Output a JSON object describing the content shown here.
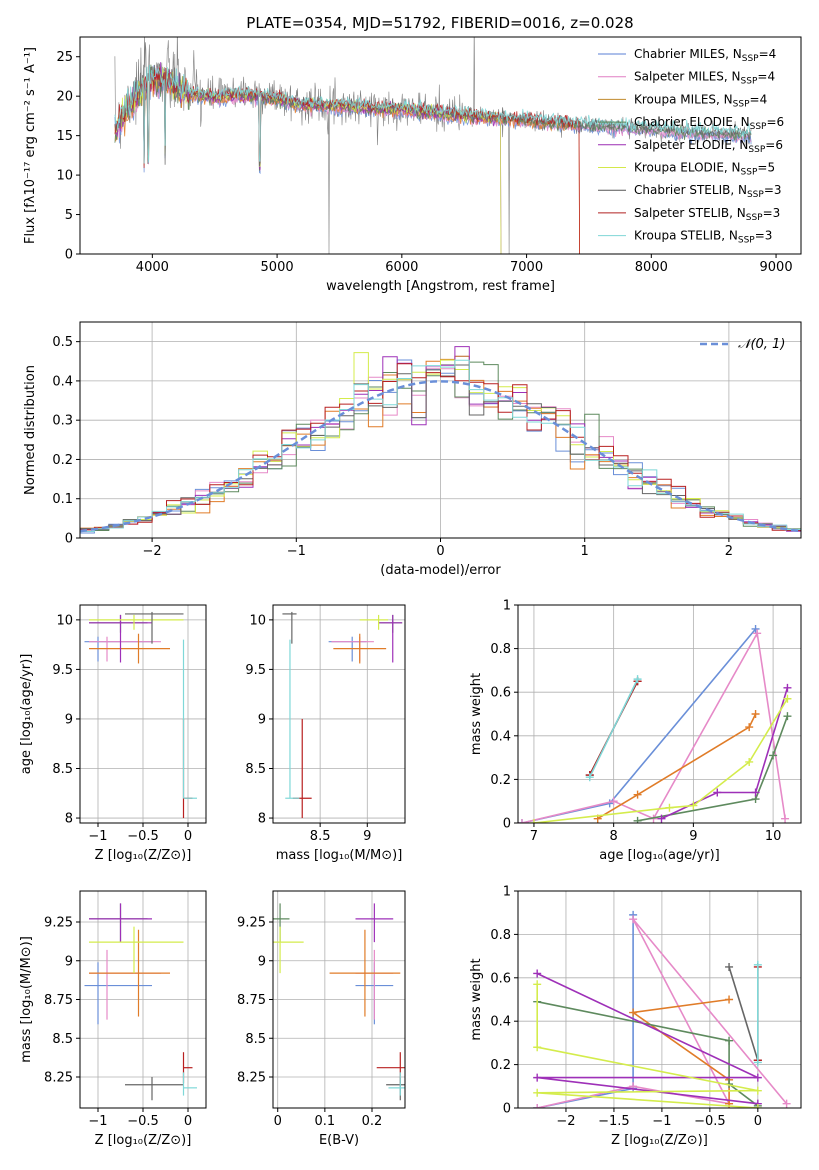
{
  "figure": {
    "title": "PLATE=0354, MJD=51792, FIBERID=0016, z=0.028"
  },
  "chart_data": [
    {
      "id": "spectrum",
      "type": "line",
      "xlabel": "wavelength [Angstrom, rest frame]",
      "ylabel": "Flux [fλ10⁻¹⁷ erg cm⁻² s⁻¹ A⁻¹]",
      "xlim": [
        3420,
        9200
      ],
      "ylim": [
        0,
        27.5
      ],
      "xticks": [
        4000,
        5000,
        6000,
        7000,
        8000,
        9000
      ],
      "yticks": [
        0,
        5,
        10,
        15,
        20,
        25
      ],
      "grid": false,
      "legend_position": "top-right",
      "legend": [
        {
          "label": "Chabrier MILES, N",
          "sub": "SSP",
          "tail": "=4",
          "color": "#5a7fd6"
        },
        {
          "label": "Salpeter MILES, N",
          "sub": "SSP",
          "tail": "=4",
          "color": "#e07fc4"
        },
        {
          "label": "Kroupa MILES, N",
          "sub": "SSP",
          "tail": "=4",
          "color": "#c08a2c"
        },
        {
          "label": "Chabrier ELODIE, N",
          "sub": "SSP",
          "tail": "=6",
          "color": "#5c8c5c"
        },
        {
          "label": "Salpeter ELODIE, N",
          "sub": "SSP",
          "tail": "=6",
          "color": "#9b2db4"
        },
        {
          "label": "Kroupa ELODIE, N",
          "sub": "SSP",
          "tail": "=5",
          "color": "#d4e84a"
        },
        {
          "label": "Chabrier STELIB, N",
          "sub": "SSP",
          "tail": "=3",
          "color": "#555555"
        },
        {
          "label": "Salpeter STELIB, N",
          "sub": "SSP",
          "tail": "=3",
          "color": "#b02020"
        },
        {
          "label": "Kroupa STELIB, N",
          "sub": "SSP",
          "tail": "=3",
          "color": "#7fd6d6"
        }
      ],
      "data_continuum": [
        [
          3700,
          16.5
        ],
        [
          3800,
          19.5
        ],
        [
          3900,
          21.0
        ],
        [
          4000,
          23.0
        ],
        [
          4100,
          22.5
        ],
        [
          4200,
          21.5
        ],
        [
          4300,
          20.5
        ],
        [
          4500,
          20.0
        ],
        [
          4700,
          20.5
        ],
        [
          5000,
          20.0
        ],
        [
          5200,
          19.0
        ],
        [
          5500,
          19.0
        ],
        [
          5800,
          18.5
        ],
        [
          6000,
          18.5
        ],
        [
          6300,
          18.0
        ],
        [
          6600,
          17.5
        ],
        [
          7000,
          17.0
        ],
        [
          7400,
          16.5
        ],
        [
          7800,
          16.0
        ],
        [
          8200,
          15.5
        ],
        [
          8600,
          15.2
        ],
        [
          8800,
          15.0
        ]
      ],
      "model_continuum": [
        [
          3700,
          15.5
        ],
        [
          3800,
          18.5
        ],
        [
          3900,
          20.5
        ],
        [
          4000,
          22.0
        ],
        [
          4100,
          22.0
        ],
        [
          4200,
          21.0
        ],
        [
          4300,
          20.3
        ],
        [
          4500,
          19.8
        ],
        [
          4700,
          20.2
        ],
        [
          5000,
          19.7
        ],
        [
          5200,
          18.9
        ],
        [
          5500,
          18.8
        ],
        [
          5800,
          18.4
        ],
        [
          6000,
          18.3
        ],
        [
          6300,
          17.8
        ],
        [
          6600,
          17.4
        ],
        [
          7000,
          16.9
        ],
        [
          7400,
          16.4
        ]
      ]
    },
    {
      "id": "residuals",
      "type": "histogram",
      "xlabel": "(data-model)/error",
      "ylabel": "Normed distribution",
      "xlim": [
        -2.5,
        2.5
      ],
      "ylim": [
        0,
        0.55
      ],
      "xticks": [
        -2,
        -1,
        0,
        1,
        2
      ],
      "yticks": [
        0.0,
        0.1,
        0.2,
        0.3,
        0.4,
        0.5
      ],
      "grid": true,
      "bin_width": 0.1,
      "legend_position": "top-right",
      "normal_label": "𝒩(0, 1)",
      "normal_color": "#6a8fd8"
    },
    {
      "id": "age-vs-Z",
      "type": "errorbar",
      "xlabel": "Z [log₁₀(Z/Z⊙)]",
      "ylabel": "age  [log₁₀(age/yr)]",
      "xlim": [
        -1.2,
        0.2
      ],
      "ylim": [
        7.95,
        10.15
      ],
      "xticks": [
        -1.0,
        -0.5,
        0.0
      ],
      "yticks": [
        8.0,
        8.5,
        9.0,
        9.5,
        10.0
      ],
      "grid": true
    },
    {
      "id": "age-vs-mass",
      "type": "errorbar",
      "xlabel": "mass [log₁₀(M/M⊙)]",
      "xlim": [
        8.0,
        9.4
      ],
      "ylim": [
        7.95,
        10.15
      ],
      "xticks": [
        8.5,
        9.0
      ],
      "yticks": [
        8.0,
        8.5,
        9.0,
        9.5,
        10.0
      ],
      "grid": true
    },
    {
      "id": "massweight-vs-age",
      "type": "line",
      "xlabel": "age  [log₁₀(age/yr)]",
      "ylabel": "mass weight",
      "xlim": [
        6.8,
        10.35
      ],
      "ylim": [
        0,
        1
      ],
      "xticks": [
        7,
        8,
        9,
        10
      ],
      "yticks": [
        0.0,
        0.2,
        0.4,
        0.6,
        0.8,
        1.0
      ],
      "grid": true
    },
    {
      "id": "mass-vs-Z",
      "type": "errorbar",
      "xlabel": "Z [log₁₀(Z/Z⊙)]",
      "ylabel": "mass [log₁₀(M/M⊙)]",
      "xlim": [
        -1.2,
        0.2
      ],
      "ylim": [
        8.05,
        9.45
      ],
      "xticks": [
        -1.0,
        -0.5,
        0.0
      ],
      "yticks": [
        8.25,
        8.5,
        8.75,
        9.0,
        9.25
      ],
      "grid": true
    },
    {
      "id": "mass-vs-ebv",
      "type": "errorbar",
      "xlabel": "E(B-V)",
      "xlim": [
        -0.01,
        0.27
      ],
      "ylim": [
        8.05,
        9.45
      ],
      "xticks": [
        0.0,
        0.1,
        0.2
      ],
      "yticks": [
        8.25,
        8.5,
        8.75,
        9.0,
        9.25
      ],
      "grid": true
    },
    {
      "id": "massweight-vs-Z",
      "type": "line",
      "xlabel": "Z [log₁₀(Z/Z⊙)]",
      "ylabel": "mass weight",
      "xlim": [
        -2.5,
        0.45
      ],
      "ylim": [
        0,
        1
      ],
      "xticks": [
        -2.0,
        -1.5,
        -1.0,
        -0.5,
        0.0
      ],
      "yticks": [
        0.0,
        0.2,
        0.4,
        0.6,
        0.8,
        1.0
      ],
      "grid": true
    }
  ],
  "models": [
    {
      "name": "Chabrier MILES",
      "color": "#6a8fd8",
      "Z": -1.0,
      "Zerr": [
        0.15,
        0.6
      ],
      "age": 9.78,
      "ageErr": [
        0.2,
        0.05
      ],
      "mass": 8.84,
      "massErr": [
        0.25,
        0.15
      ],
      "ebv": 0.205,
      "ebvErr": 0.08,
      "comps": [
        [
          6.85,
          -2.3,
          0.0
        ],
        [
          7.95,
          -1.3,
          0.09
        ],
        [
          9.78,
          -1.3,
          0.89
        ]
      ]
    },
    {
      "name": "Salpeter MILES",
      "color": "#e68ac8",
      "Z": -0.9,
      "Zerr": [
        0.2,
        0.6
      ],
      "age": 9.78,
      "ageErr": [
        0.2,
        0.05
      ],
      "mass": 8.92,
      "massErr": [
        0.3,
        0.15
      ],
      "ebv": 0.205,
      "ebvErr": 0.08,
      "comps": [
        [
          6.85,
          -2.3,
          0.0
        ],
        [
          8.0,
          -1.3,
          0.1
        ],
        [
          8.5,
          -0.3,
          0.02
        ],
        [
          9.8,
          -1.3,
          0.87
        ],
        [
          10.15,
          0.3,
          0.02
        ]
      ]
    },
    {
      "name": "Kroupa MILES",
      "color": "#e07c28",
      "Z": -0.55,
      "Zerr": [
        0.55,
        0.35
      ],
      "age": 9.71,
      "ageErr": [
        0.15,
        0.15
      ],
      "mass": 8.92,
      "massErr": [
        0.28,
        0.28
      ],
      "ebv": 0.185,
      "ebvErr": 0.15,
      "comps": [
        [
          7.8,
          -0.3,
          0.02
        ],
        [
          8.3,
          -0.3,
          0.13
        ],
        [
          9.7,
          -1.3,
          0.44
        ],
        [
          9.78,
          -0.3,
          0.5
        ]
      ]
    },
    {
      "name": "Chabrier ELODIE",
      "color": "#5e8a5e",
      "Z": -0.75,
      "Zerr": [
        0.35,
        0.3
      ],
      "age": 9.97,
      "ageErr": [
        0.1,
        0.08
      ],
      "mass": 9.27,
      "massErr": [
        0.15,
        0.1
      ],
      "ebv": 0.005,
      "ebvErr": 0.04,
      "comps": [
        [
          8.3,
          0.0,
          0.01
        ],
        [
          9.78,
          -0.3,
          0.11
        ],
        [
          10.0,
          -0.3,
          0.31
        ],
        [
          10.18,
          -2.3,
          0.49
        ]
      ]
    },
    {
      "name": "Salpeter ELODIE",
      "color": "#9e30b8",
      "Z": -0.75,
      "Zerr": [
        0.35,
        0.35
      ],
      "age": 9.97,
      "ageErr": [
        0.4,
        0.08
      ],
      "mass": 9.27,
      "massErr": [
        0.15,
        0.1
      ],
      "ebv": 0.205,
      "ebvErr": 0.08,
      "comps": [
        [
          8.6,
          0.0,
          0.02
        ],
        [
          9.3,
          -2.3,
          0.14
        ],
        [
          9.78,
          0.0,
          0.14
        ],
        [
          10.18,
          -2.3,
          0.62
        ]
      ]
    },
    {
      "name": "Kroupa ELODIE",
      "color": "#d4ec4c",
      "Z": -0.6,
      "Zerr": [
        0.5,
        0.55
      ],
      "age": 10.0,
      "ageErr": [
        0.1,
        0.05
      ],
      "mass": 9.12,
      "massErr": [
        0.2,
        0.1
      ],
      "ebv": 0.005,
      "ebvErr": 0.1,
      "comps": [
        [
          7.0,
          0.0,
          0.0
        ],
        [
          8.7,
          -2.3,
          0.07
        ],
        [
          9.0,
          0.0,
          0.08
        ],
        [
          9.7,
          -2.3,
          0.28
        ],
        [
          10.18,
          -2.3,
          0.57
        ]
      ]
    },
    {
      "name": "Chabrier STELIB",
      "color": "#666666",
      "Z": -0.4,
      "Zerr": [
        0.3,
        0.35
      ],
      "age": 10.06,
      "ageErr": [
        0.3,
        0.02
      ],
      "mass": 8.2,
      "massErr": [
        0.1,
        0.05
      ],
      "ebv": 0.26,
      "ebvErr": 0.06,
      "comps": [
        [
          7.7,
          0.0,
          0.22
        ],
        [
          8.3,
          -0.3,
          0.65
        ]
      ]
    },
    {
      "name": "Salpeter STELIB",
      "color": "#b82020",
      "Z": -0.05,
      "Zerr": [
        0.0,
        0.1
      ],
      "age": 8.2,
      "ageErr": [
        0.2,
        0.8
      ],
      "mass": 8.31,
      "massErr": [
        0.1,
        0.1
      ],
      "ebv": 0.26,
      "ebvErr": 0.1,
      "comps": [
        [
          7.7,
          0.0,
          0.22
        ],
        [
          8.3,
          0.0,
          0.65
        ]
      ]
    },
    {
      "name": "Kroupa STELIB",
      "color": "#7fd8d8",
      "Z": -0.05,
      "Zerr": [
        0.0,
        0.15
      ],
      "age": 8.2,
      "ageErr": [
        0.0,
        1.6
      ],
      "mass": 8.18,
      "massErr": [
        0.05,
        0.1
      ],
      "ebv": 0.26,
      "ebvErr": 0.05,
      "comps": [
        [
          7.7,
          0.0,
          0.21
        ],
        [
          8.3,
          0.0,
          0.66
        ]
      ]
    }
  ]
}
